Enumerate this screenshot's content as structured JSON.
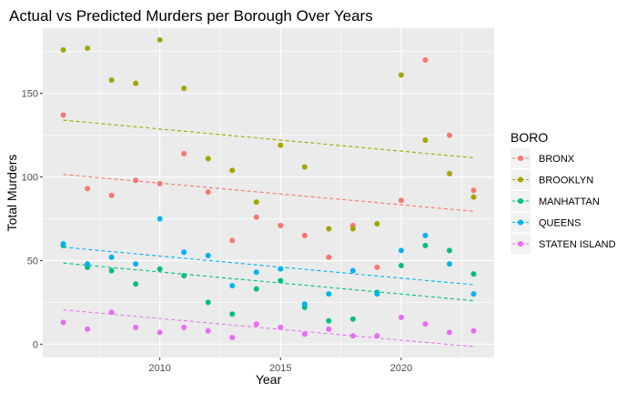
{
  "chart_data": {
    "type": "scatter",
    "title": "Actual vs Predicted Murders per Borough Over Years",
    "xlabel": "Year",
    "ylabel": "Total Murders",
    "xlim": [
      2005.15,
      2023.85
    ],
    "ylim": [
      -8,
      189
    ],
    "x_ticks": [
      2010,
      2015,
      2020
    ],
    "y_ticks": [
      0,
      50,
      100,
      150
    ],
    "grid": true,
    "legend": {
      "title": "BORO",
      "position": "right"
    },
    "series": [
      {
        "name": "BRONX",
        "color": "#F8766D",
        "points": [
          [
            2006,
            137
          ],
          [
            2007,
            93
          ],
          [
            2008,
            89
          ],
          [
            2009,
            98
          ],
          [
            2010,
            96
          ],
          [
            2011,
            114
          ],
          [
            2012,
            91
          ],
          [
            2013,
            62
          ],
          [
            2014,
            76
          ],
          [
            2015,
            71
          ],
          [
            2016,
            65
          ],
          [
            2017,
            52
          ],
          [
            2018,
            71
          ],
          [
            2019,
            46
          ],
          [
            2020,
            86
          ],
          [
            2021,
            170
          ],
          [
            2022,
            125
          ],
          [
            2023,
            92
          ]
        ],
        "trend": [
          [
            2006,
            101.5
          ],
          [
            2023,
            79.5
          ]
        ]
      },
      {
        "name": "BROOKLYN",
        "color": "#A3A500",
        "points": [
          [
            2006,
            176
          ],
          [
            2007,
            177
          ],
          [
            2008,
            158
          ],
          [
            2009,
            156
          ],
          [
            2010,
            182
          ],
          [
            2011,
            153
          ],
          [
            2012,
            111
          ],
          [
            2013,
            104
          ],
          [
            2014,
            85
          ],
          [
            2015,
            119
          ],
          [
            2016,
            106
          ],
          [
            2017,
            69
          ],
          [
            2018,
            69
          ],
          [
            2019,
            72
          ],
          [
            2020,
            161
          ],
          [
            2021,
            122
          ],
          [
            2022,
            102
          ],
          [
            2023,
            88
          ]
        ],
        "trend": [
          [
            2006,
            134
          ],
          [
            2023,
            111.5
          ]
        ]
      },
      {
        "name": "MANHATTAN",
        "color": "#00BF7D",
        "points": [
          [
            2006,
            59
          ],
          [
            2007,
            46
          ],
          [
            2008,
            44
          ],
          [
            2009,
            36
          ],
          [
            2010,
            45
          ],
          [
            2011,
            41
          ],
          [
            2012,
            25
          ],
          [
            2013,
            18
          ],
          [
            2014,
            33
          ],
          [
            2015,
            38
          ],
          [
            2016,
            22
          ],
          [
            2017,
            14
          ],
          [
            2018,
            15
          ],
          [
            2019,
            31
          ],
          [
            2020,
            47
          ],
          [
            2021,
            59
          ],
          [
            2022,
            56
          ],
          [
            2023,
            42
          ]
        ],
        "trend": [
          [
            2006,
            48.5
          ],
          [
            2023,
            26
          ]
        ]
      },
      {
        "name": "QUEENS",
        "color": "#00B0F6",
        "points": [
          [
            2006,
            60
          ],
          [
            2007,
            48
          ],
          [
            2008,
            52
          ],
          [
            2009,
            48
          ],
          [
            2010,
            75
          ],
          [
            2011,
            55
          ],
          [
            2012,
            53
          ],
          [
            2013,
            35
          ],
          [
            2014,
            43
          ],
          [
            2015,
            45
          ],
          [
            2016,
            24
          ],
          [
            2017,
            30
          ],
          [
            2018,
            44
          ],
          [
            2019,
            30
          ],
          [
            2020,
            56
          ],
          [
            2021,
            65
          ],
          [
            2022,
            48
          ],
          [
            2023,
            30
          ]
        ],
        "trend": [
          [
            2006,
            58
          ],
          [
            2023,
            35.5
          ]
        ]
      },
      {
        "name": "STATEN ISLAND",
        "color": "#E76BF3",
        "points": [
          [
            2006,
            13
          ],
          [
            2007,
            9
          ],
          [
            2008,
            19
          ],
          [
            2009,
            10
          ],
          [
            2010,
            7
          ],
          [
            2011,
            10
          ],
          [
            2012,
            8
          ],
          [
            2013,
            4
          ],
          [
            2014,
            12
          ],
          [
            2015,
            10
          ],
          [
            2016,
            6
          ],
          [
            2017,
            9
          ],
          [
            2018,
            5
          ],
          [
            2019,
            5
          ],
          [
            2020,
            16
          ],
          [
            2021,
            12
          ],
          [
            2022,
            7
          ],
          [
            2023,
            8
          ]
        ],
        "trend": [
          [
            2006,
            20.5
          ],
          [
            2023,
            -1.5
          ]
        ]
      }
    ]
  }
}
